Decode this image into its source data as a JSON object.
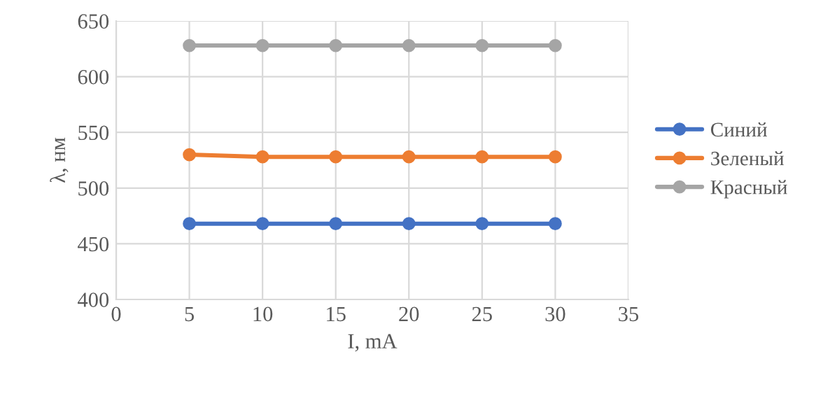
{
  "chart_data": {
    "type": "line",
    "xlabel": "I, mA",
    "ylabel": "λ, нм",
    "x": [
      5,
      10,
      15,
      20,
      25,
      30
    ],
    "series": [
      {
        "name": "Синий",
        "color": "#4472c4",
        "values": [
          468,
          468,
          468,
          468,
          468,
          468
        ]
      },
      {
        "name": "Зеленый",
        "color": "#ed7d31",
        "values": [
          530,
          528,
          528,
          528,
          528,
          528
        ]
      },
      {
        "name": "Красный",
        "color": "#a5a5a5",
        "values": [
          628,
          628,
          628,
          628,
          628,
          628
        ]
      }
    ],
    "xlim": [
      0,
      35
    ],
    "xticks": [
      0,
      5,
      10,
      15,
      20,
      25,
      30,
      35
    ],
    "ylim": [
      400,
      650
    ],
    "yticks": [
      400,
      450,
      500,
      550,
      600,
      650
    ],
    "grid": true,
    "legend": "right",
    "marker": "circle",
    "line_style": "solid"
  }
}
